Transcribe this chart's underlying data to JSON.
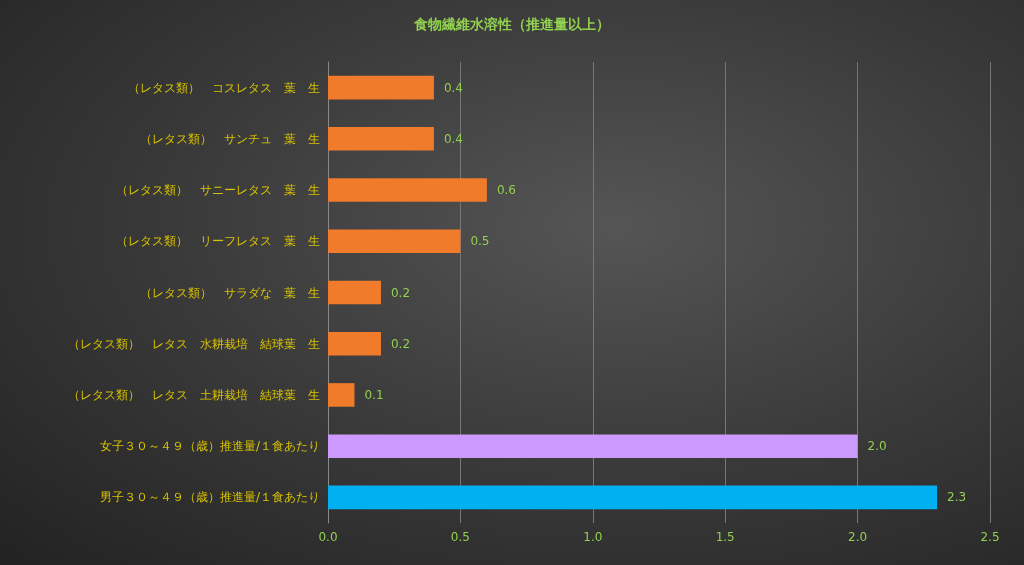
{
  "chart_data": {
    "type": "bar",
    "orientation": "horizontal",
    "title": "食物繊維水溶性（推進量以上）",
    "categories": [
      "（レタス類）　コスレタス　葉　生",
      "（レタス類）　サンチュ　葉　生",
      "（レタス類）　サニーレタス　葉　生",
      "（レタス類）　リーフレタス　葉　生",
      "（レタス類）　サラダな　葉　生",
      "（レタス類）　レタス　水耕栽培　結球葉　生",
      "（レタス類）　レタス　土耕栽培　結球葉　生",
      "女子３０～４９（歳）推進量/１食あたり",
      "男子３０～４９（歳）推進量/１食あたり"
    ],
    "values": [
      0.4,
      0.4,
      0.6,
      0.5,
      0.2,
      0.2,
      0.1,
      2.0,
      2.3
    ],
    "colors": [
      "#f07b2b",
      "#f07b2b",
      "#f07b2b",
      "#f07b2b",
      "#f07b2b",
      "#f07b2b",
      "#f07b2b",
      "#cc99ff",
      "#00b0f0"
    ],
    "value_labels": [
      "0.4",
      "0.4",
      "0.6",
      "0.5",
      "0.2",
      "0.2",
      "0.1",
      "2.0",
      "2.3"
    ],
    "xlim": [
      0,
      2.5
    ],
    "xticks": [
      {
        "value": 0,
        "label": "0.0"
      },
      0.5,
      {
        "value": 1,
        "label": "1.0"
      },
      1.5,
      {
        "value": 2,
        "label": "2.0"
      },
      2.5
    ],
    "grid": "x"
  }
}
